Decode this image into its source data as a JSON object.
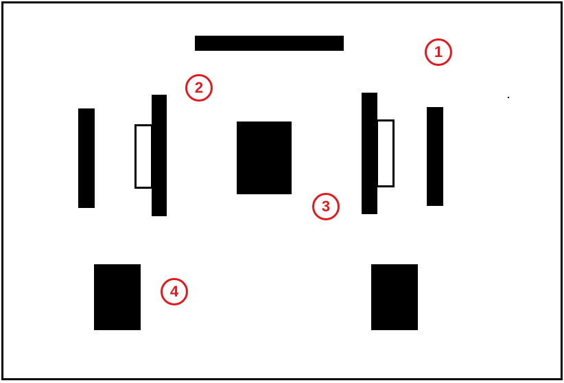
{
  "colors": {
    "ink": "#000000",
    "accent": "#e0191f",
    "background": "#ffffff"
  },
  "markers": [
    {
      "label": "1"
    },
    {
      "label": "2"
    },
    {
      "label": "3"
    },
    {
      "label": "4"
    }
  ]
}
